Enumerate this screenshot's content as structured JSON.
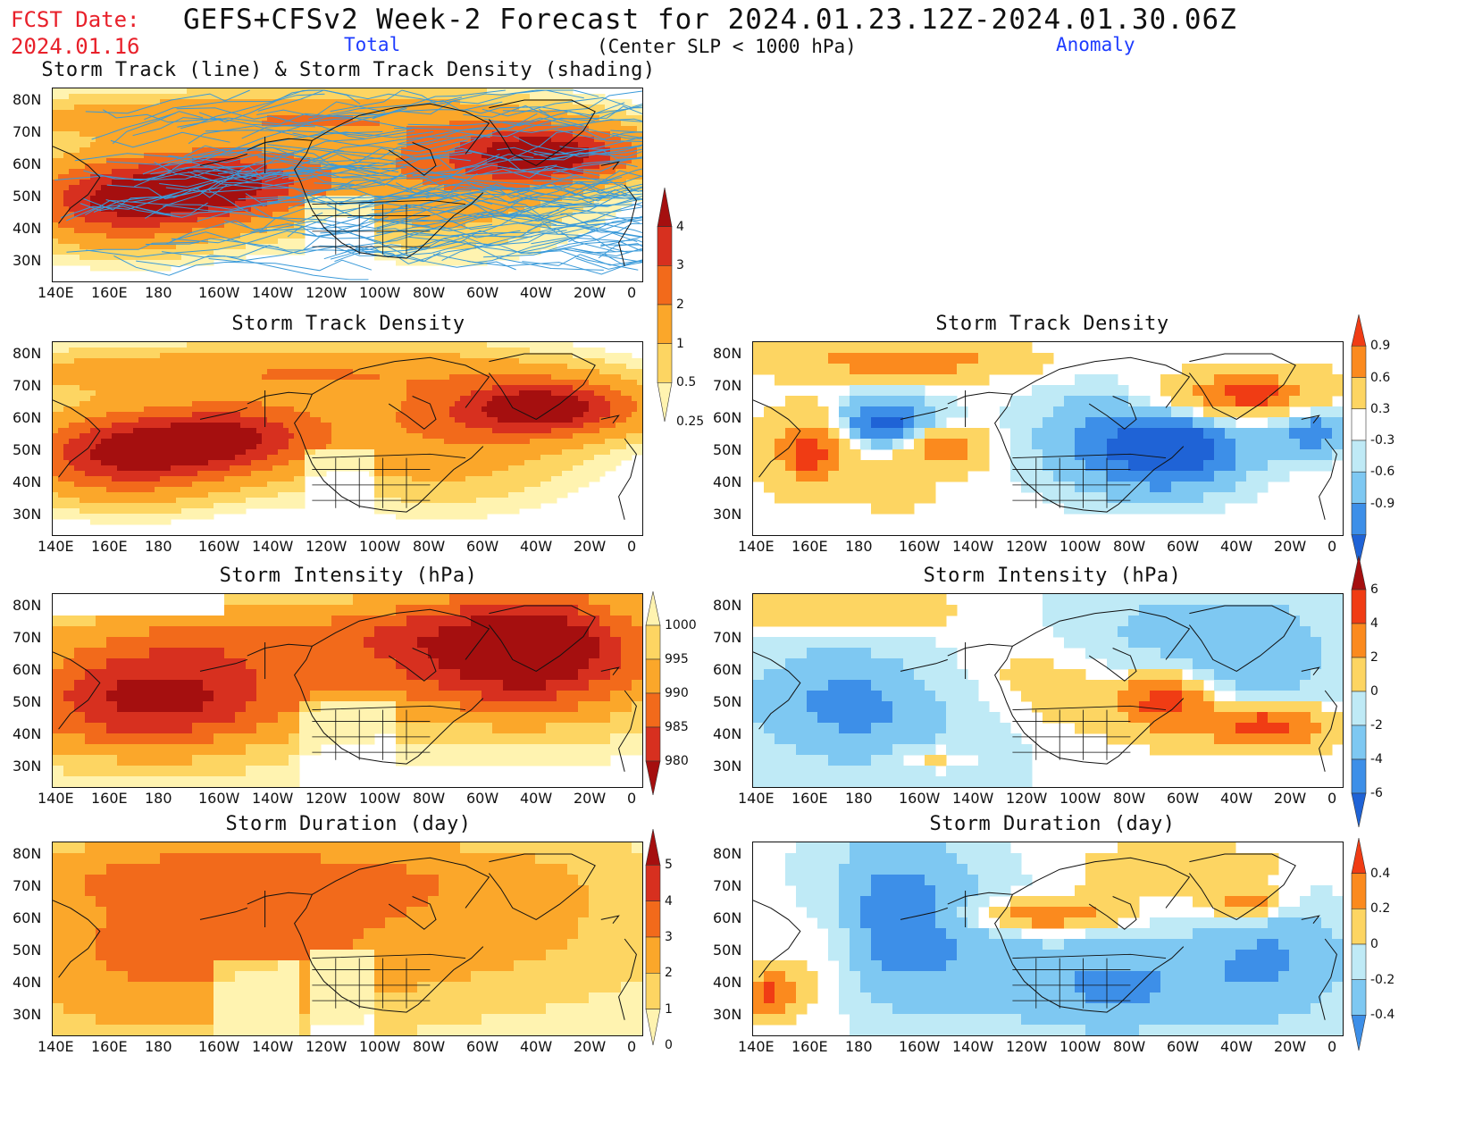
{
  "header": {
    "fcst_line1": "FCST Date:",
    "fcst_line2": "2024.01.16",
    "title": "GEFS+CFSv2 Week-2 Forecast for 2024.01.23.12Z-2024.01.30.06Z",
    "total_label": "Total",
    "subtitle": "(Center SLP < 1000 hPa)",
    "anomaly_label": "Anomaly"
  },
  "axes": {
    "lon_labels": [
      "140E",
      "160E",
      "180",
      "160W",
      "140W",
      "120W",
      "100W",
      "80W",
      "60W",
      "40W",
      "20W",
      "0"
    ],
    "lat_labels": [
      "80N",
      "70N",
      "60N",
      "50N",
      "40N",
      "30N"
    ]
  },
  "panels": [
    {
      "id": "track-total",
      "title": "Storm Track (line) & Storm Track Density (shading)",
      "field": "density_total",
      "tracks": true
    },
    {
      "id": "density-total",
      "title": "Storm Track Density",
      "field": "density_total"
    },
    {
      "id": "density-anom",
      "title": "Storm Track Density",
      "field": "density_anom"
    },
    {
      "id": "intensity-total",
      "title": "Storm Intensity (hPa)",
      "field": "intensity_total"
    },
    {
      "id": "intensity-anom",
      "title": "Storm Intensity (hPa)",
      "field": "intensity_anom"
    },
    {
      "id": "duration-total",
      "title": "Storm Duration (day)",
      "field": "duration_total"
    },
    {
      "id": "duration-anom",
      "title": "Storm Duration (day)",
      "field": "duration_anom"
    }
  ],
  "colorbars": {
    "density_total": {
      "labels": [
        "4",
        "3",
        "2",
        "1",
        "0.5",
        "0.25"
      ],
      "colors": [
        "#a50f0f",
        "#d7301f",
        "#f26a1b",
        "#fba72a",
        "#fdd562",
        "#fff3b0"
      ]
    },
    "intensity_total": {
      "labels": [
        "1000",
        "995",
        "990",
        "985",
        "980"
      ],
      "colors": [
        "#fff3b0",
        "#fdd562",
        "#fba72a",
        "#f26a1b",
        "#d7301f",
        "#a50f0f"
      ]
    },
    "duration_total": {
      "labels": [
        "5",
        "4",
        "3",
        "2",
        "1",
        "0"
      ],
      "colors": [
        "#a50f0f",
        "#d7301f",
        "#f26a1b",
        "#fba72a",
        "#fdd562",
        "#fff3b0"
      ]
    },
    "density_anom": {
      "labels": [
        "0.9",
        "0.6",
        "0.3",
        "-0.3",
        "-0.6",
        "-0.9"
      ],
      "colors": [
        "#f03c14",
        "#fb8a1e",
        "#fdd562",
        "#ffffff",
        "#bfeaf6",
        "#7ec8f2",
        "#3d8fe8",
        "#1f63d6"
      ]
    },
    "intensity_anom": {
      "labels": [
        "6",
        "4",
        "2",
        "0",
        "-2",
        "-4",
        "-6"
      ],
      "colors": [
        "#a50f0f",
        "#f03c14",
        "#fb8a1e",
        "#fdd562",
        "#bfeaf6",
        "#7ec8f2",
        "#3d8fe8",
        "#1f63d6"
      ]
    },
    "duration_anom": {
      "labels": [
        "0.4",
        "0.2",
        "0",
        "-0.2",
        "-0.4"
      ],
      "colors": [
        "#f03c14",
        "#fb8a1e",
        "#fdd562",
        "#bfeaf6",
        "#7ec8f2",
        "#3d8fe8"
      ]
    }
  },
  "colors": {
    "track_line": "#3a9ad9",
    "coast": "#111111"
  }
}
